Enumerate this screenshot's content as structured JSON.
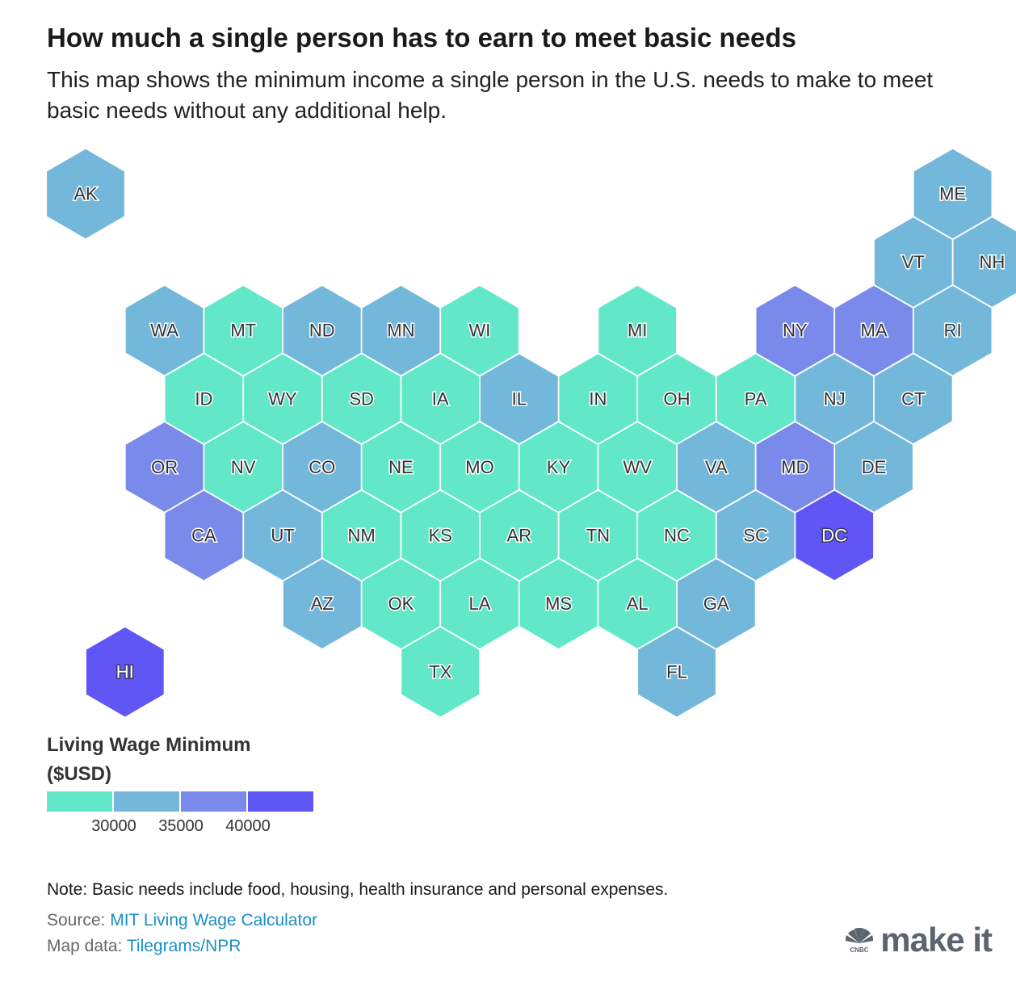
{
  "header": {
    "title": "How much a single person has to earn to meet basic needs",
    "subtitle": "This map shows the minimum income a single person in the U.S. needs to make to meet basic needs without any additional help."
  },
  "colors": {
    "bin1": "#62e8c8",
    "bin2": "#73b8db",
    "bin3": "#7a8aea",
    "bin4": "#6055f5",
    "stroke": "#ffffff"
  },
  "states": [
    {
      "abbr": "AK",
      "col": 0,
      "row": 0,
      "bin": 2
    },
    {
      "abbr": "ME",
      "col": 11,
      "row": 0,
      "bin": 2
    },
    {
      "abbr": "VT",
      "col": 10,
      "row": 1,
      "bin": 2
    },
    {
      "abbr": "NH",
      "col": 11,
      "row": 1,
      "bin": 2
    },
    {
      "abbr": "WA",
      "col": 1,
      "row": 2,
      "bin": 2
    },
    {
      "abbr": "MT",
      "col": 2,
      "row": 2,
      "bin": 1
    },
    {
      "abbr": "ND",
      "col": 3,
      "row": 2,
      "bin": 2
    },
    {
      "abbr": "MN",
      "col": 4,
      "row": 2,
      "bin": 2
    },
    {
      "abbr": "WI",
      "col": 5,
      "row": 2,
      "bin": 1
    },
    {
      "abbr": "MI",
      "col": 7,
      "row": 2,
      "bin": 1
    },
    {
      "abbr": "NY",
      "col": 9,
      "row": 2,
      "bin": 3
    },
    {
      "abbr": "MA",
      "col": 10,
      "row": 2,
      "bin": 3
    },
    {
      "abbr": "RI",
      "col": 11,
      "row": 2,
      "bin": 2
    },
    {
      "abbr": "ID",
      "col": 1,
      "row": 3,
      "bin": 1
    },
    {
      "abbr": "WY",
      "col": 2,
      "row": 3,
      "bin": 1
    },
    {
      "abbr": "SD",
      "col": 3,
      "row": 3,
      "bin": 1
    },
    {
      "abbr": "IA",
      "col": 4,
      "row": 3,
      "bin": 1
    },
    {
      "abbr": "IL",
      "col": 5,
      "row": 3,
      "bin": 2
    },
    {
      "abbr": "IN",
      "col": 6,
      "row": 3,
      "bin": 1
    },
    {
      "abbr": "OH",
      "col": 7,
      "row": 3,
      "bin": 1
    },
    {
      "abbr": "PA",
      "col": 8,
      "row": 3,
      "bin": 1
    },
    {
      "abbr": "NJ",
      "col": 9,
      "row": 3,
      "bin": 2
    },
    {
      "abbr": "CT",
      "col": 10,
      "row": 3,
      "bin": 2
    },
    {
      "abbr": "OR",
      "col": 1,
      "row": 4,
      "bin": 3
    },
    {
      "abbr": "NV",
      "col": 2,
      "row": 4,
      "bin": 1
    },
    {
      "abbr": "CO",
      "col": 3,
      "row": 4,
      "bin": 2
    },
    {
      "abbr": "NE",
      "col": 4,
      "row": 4,
      "bin": 1
    },
    {
      "abbr": "MO",
      "col": 5,
      "row": 4,
      "bin": 1
    },
    {
      "abbr": "KY",
      "col": 6,
      "row": 4,
      "bin": 1
    },
    {
      "abbr": "WV",
      "col": 7,
      "row": 4,
      "bin": 1
    },
    {
      "abbr": "VA",
      "col": 8,
      "row": 4,
      "bin": 2
    },
    {
      "abbr": "MD",
      "col": 9,
      "row": 4,
      "bin": 3
    },
    {
      "abbr": "DE",
      "col": 10,
      "row": 4,
      "bin": 2
    },
    {
      "abbr": "CA",
      "col": 1,
      "row": 5,
      "bin": 3
    },
    {
      "abbr": "UT",
      "col": 2,
      "row": 5,
      "bin": 2
    },
    {
      "abbr": "NM",
      "col": 3,
      "row": 5,
      "bin": 1
    },
    {
      "abbr": "KS",
      "col": 4,
      "row": 5,
      "bin": 1
    },
    {
      "abbr": "AR",
      "col": 5,
      "row": 5,
      "bin": 1
    },
    {
      "abbr": "TN",
      "col": 6,
      "row": 5,
      "bin": 1
    },
    {
      "abbr": "NC",
      "col": 7,
      "row": 5,
      "bin": 1
    },
    {
      "abbr": "SC",
      "col": 8,
      "row": 5,
      "bin": 2
    },
    {
      "abbr": "DC",
      "col": 9,
      "row": 5,
      "bin": 4
    },
    {
      "abbr": "AZ",
      "col": 3,
      "row": 6,
      "bin": 2
    },
    {
      "abbr": "OK",
      "col": 4,
      "row": 6,
      "bin": 1
    },
    {
      "abbr": "LA",
      "col": 5,
      "row": 6,
      "bin": 1
    },
    {
      "abbr": "MS",
      "col": 6,
      "row": 6,
      "bin": 1
    },
    {
      "abbr": "AL",
      "col": 7,
      "row": 6,
      "bin": 1
    },
    {
      "abbr": "GA",
      "col": 8,
      "row": 6,
      "bin": 2
    },
    {
      "abbr": "HI",
      "col": 0,
      "row": 7,
      "bin": 4
    },
    {
      "abbr": "TX",
      "col": 4,
      "row": 7,
      "bin": 1
    },
    {
      "abbr": "FL",
      "col": 7,
      "row": 7,
      "bin": 2
    }
  ],
  "legend": {
    "title_line1": "Living Wage Minimum",
    "title_line2": "($USD)",
    "ticks": [
      "30000",
      "35000",
      "40000"
    ]
  },
  "footer": {
    "note": "Note: Basic needs include food, housing, health insurance and personal expenses.",
    "source_label": "Source: ",
    "source_link": "MIT Living Wage Calculator",
    "mapdata_label": "Map data: ",
    "mapdata_link": "Tilegrams/NPR"
  },
  "brand": {
    "text": "make it",
    "logo_caption": "CNBC"
  }
}
